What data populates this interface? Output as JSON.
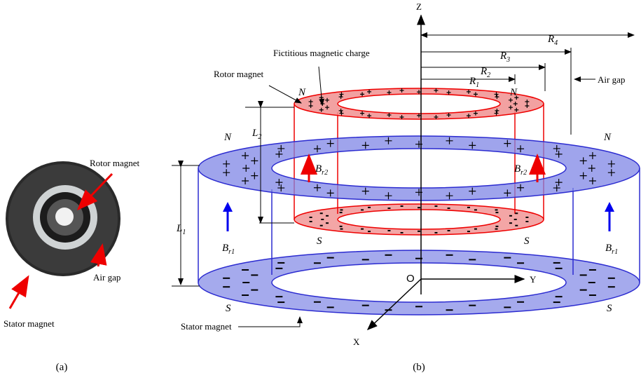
{
  "panel_a": {
    "labels": {
      "rotor_magnet": "Rotor magnet",
      "stator_magnet": "Stator magnet",
      "air_gap": "Air gap"
    },
    "caption": "(a)"
  },
  "panel_b": {
    "caption": "(b)",
    "axes": {
      "z": "Z",
      "y": "Y",
      "x": "X",
      "origin": "O"
    },
    "labels": {
      "fictitious_charge": "Fictitious magnetic charge",
      "rotor_magnet": "Rotor magnet",
      "air_gap": "Air gap",
      "stator_magnet": "Stator magnet"
    },
    "radii": [
      {
        "symbol": "R",
        "sub": "4"
      },
      {
        "symbol": "R",
        "sub": "3"
      },
      {
        "symbol": "R",
        "sub": "2"
      },
      {
        "symbol": "R",
        "sub": "1"
      }
    ],
    "lengths": [
      {
        "symbol": "L",
        "sub": "2"
      },
      {
        "symbol": "L",
        "sub": "1"
      }
    ],
    "fields": [
      {
        "symbol": "B",
        "sub": "r2"
      },
      {
        "symbol": "B",
        "sub": "r2"
      },
      {
        "symbol": "B",
        "sub": "r1"
      },
      {
        "symbol": "B",
        "sub": "r1"
      }
    ],
    "poles": [
      "N",
      "N",
      "N",
      "N",
      "S",
      "S",
      "S",
      "S"
    ]
  }
}
